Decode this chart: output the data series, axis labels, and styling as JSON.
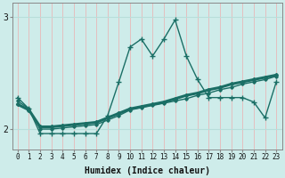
{
  "xlabel": "Humidex (Indice chaleur)",
  "bg_color": "#ceecea",
  "line_color": "#1a6e65",
  "grid_color": "#b8deda",
  "x_values": [
    0,
    1,
    2,
    3,
    4,
    5,
    6,
    7,
    8,
    9,
    10,
    11,
    12,
    13,
    14,
    15,
    16,
    17,
    18,
    19,
    20,
    21,
    22,
    23
  ],
  "y_jagged": [
    2.28,
    2.18,
    1.96,
    1.96,
    1.96,
    1.96,
    1.96,
    1.96,
    2.12,
    2.42,
    2.73,
    2.8,
    2.65,
    2.8,
    2.97,
    2.65,
    2.44,
    2.28,
    2.28,
    2.28,
    2.28,
    2.24,
    2.1,
    2.42
  ],
  "y_smooth": [
    2.22,
    2.17,
    2.02,
    2.02,
    2.03,
    2.04,
    2.05,
    2.06,
    2.1,
    2.14,
    2.18,
    2.2,
    2.22,
    2.24,
    2.27,
    2.3,
    2.32,
    2.35,
    2.37,
    2.4,
    2.42,
    2.44,
    2.46,
    2.48
  ],
  "y_third": [
    2.25,
    2.18,
    2.0,
    2.0,
    2.01,
    2.02,
    2.03,
    2.04,
    2.08,
    2.12,
    2.17,
    2.19,
    2.21,
    2.23,
    2.25,
    2.27,
    2.3,
    2.32,
    2.35,
    2.37,
    2.4,
    2.42,
    2.44,
    2.47
  ],
  "ylim": [
    1.82,
    3.12
  ],
  "yticks": [
    2,
    3
  ],
  "xticks": [
    0,
    1,
    2,
    3,
    4,
    5,
    6,
    7,
    8,
    9,
    10,
    11,
    12,
    13,
    14,
    15,
    16,
    17,
    18,
    19,
    20,
    21,
    22,
    23
  ]
}
